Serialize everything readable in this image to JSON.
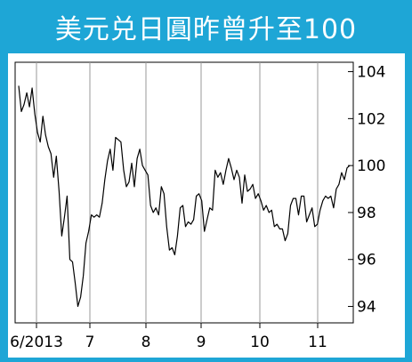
{
  "colors": {
    "frame": "#1ea6d6",
    "line": "#000000",
    "grid": "#9a9a9a",
    "title_text": "#ffffff"
  },
  "chart_data": {
    "type": "line",
    "title": "美元兑日圓昨曾升至100",
    "xlabel": "",
    "ylabel": "",
    "ylim": [
      93.3,
      104.4
    ],
    "yticks": [
      94,
      96,
      98,
      100,
      102,
      104
    ],
    "ytick_labels": [
      "94",
      "96",
      "98",
      "100",
      "102",
      "104"
    ],
    "x_tick_labels": [
      "6/2013",
      "7",
      "8",
      "9",
      "10",
      "11"
    ],
    "x_tick_positions": [
      32,
      92,
      155,
      217,
      283,
      348
    ],
    "grid": "vertical",
    "series": [
      {
        "values": [
          103.4,
          102.3,
          102.6,
          103.1,
          102.5,
          103.3,
          102.2,
          101.4,
          101.0,
          102.1,
          101.3,
          100.8,
          100.5,
          99.5,
          100.4,
          98.9,
          97.0,
          97.8,
          98.7,
          96.0,
          95.9,
          95.0,
          94.0,
          94.4,
          95.3,
          96.7,
          97.2,
          97.9,
          97.8,
          97.9,
          97.8,
          98.4,
          99.4,
          100.2,
          100.7,
          99.8,
          101.2,
          101.1,
          101.0,
          99.8,
          99.1,
          99.3,
          100.1,
          99.1,
          100.3,
          100.7,
          100.0,
          99.8,
          99.6,
          98.3,
          98.0,
          98.2,
          97.9,
          99.1,
          98.8,
          97.4,
          96.4,
          96.5,
          96.2,
          97.0,
          98.2,
          98.3,
          97.4,
          97.6,
          97.5,
          97.7,
          98.7,
          98.8,
          98.5,
          97.2,
          97.7,
          98.2,
          98.1,
          99.8,
          99.5,
          99.7,
          99.2,
          99.8,
          100.3,
          99.9,
          99.4,
          99.8,
          99.5,
          98.4,
          99.6,
          98.9,
          99.0,
          99.2,
          98.6,
          98.8,
          98.5,
          98.1,
          98.3,
          98.0,
          98.1,
          97.4,
          97.5,
          97.3,
          97.3,
          96.8,
          97.1,
          98.3,
          98.6,
          98.6,
          97.9,
          98.7,
          98.7,
          97.6,
          97.9,
          98.2,
          97.4,
          97.5,
          98.1,
          98.5,
          98.7,
          98.6,
          98.7,
          98.2,
          99.0,
          99.2,
          99.7,
          99.4,
          99.9,
          100.0
        ]
      }
    ]
  }
}
